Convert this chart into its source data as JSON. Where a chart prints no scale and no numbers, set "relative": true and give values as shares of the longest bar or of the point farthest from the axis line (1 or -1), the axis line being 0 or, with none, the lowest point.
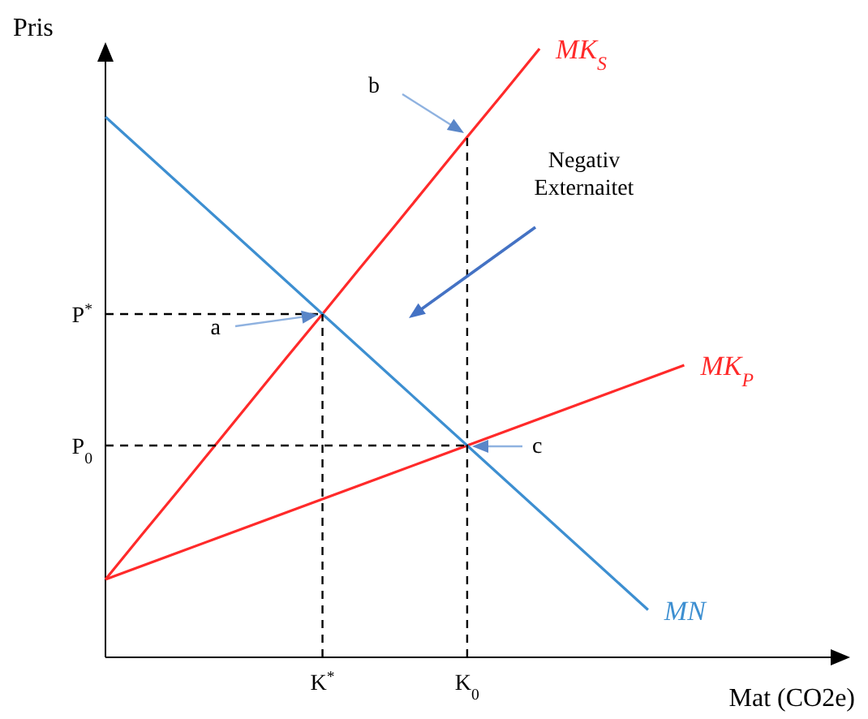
{
  "chart_data": {
    "type": "line",
    "relative": true,
    "xlabel": "Mat (CO2e)",
    "ylabel": "Pris",
    "legend": false,
    "categories": [
      null,
      null,
      null,
      null,
      null,
      null,
      "K$^{*}$",
      null,
      null,
      null,
      "K$_{0}$",
      null,
      null,
      null,
      null,
      null,
      null,
      null,
      null,
      null,
      null
    ],
    "series": [
      {
        "name": "MK$_{S}$",
        "color": "#ff2a2a",
        "values": [
          0.128,
          0.201,
          0.273,
          0.346,
          0.419,
          0.492,
          0.564,
          0.637,
          0.709,
          0.782,
          0.855,
          0.927,
          1.0,
          null,
          null,
          null,
          null,
          null,
          null,
          null,
          null
        ]
      },
      {
        "name": "MK$_{P}$",
        "color": "#ff2a2a",
        "values": [
          0.128,
          0.15,
          0.172,
          0.194,
          0.216,
          0.238,
          0.26,
          0.282,
          0.304,
          0.326,
          0.348,
          0.37,
          0.392,
          0.414,
          0.436,
          0.458,
          0.48,
          null,
          null,
          null,
          null
        ]
      },
      {
        "name": "MN",
        "color": "#3d8fd1",
        "values": [
          0.888,
          0.834,
          0.78,
          0.726,
          0.672,
          0.618,
          0.564,
          0.51,
          0.456,
          0.402,
          0.348,
          0.294,
          0.24,
          0.186,
          0.132,
          0.078,
          null,
          null,
          null,
          null,
          null
        ]
      },
      {
        "color": "#000000",
        "line_style": "dashed",
        "values": [
          0.564,
          0.564,
          0.564,
          0.564,
          0.564,
          0.564,
          0.564,
          null,
          null,
          null,
          null,
          null,
          null,
          null,
          null,
          null,
          null,
          null,
          null,
          null,
          null
        ]
      },
      {
        "color": "#000000",
        "line_style": "dashed",
        "values": [
          0.348,
          0.348,
          0.348,
          0.348,
          0.348,
          0.348,
          0.348,
          0.348,
          0.348,
          0.348,
          0.348,
          null,
          null,
          null,
          null,
          null,
          null,
          null,
          null,
          null,
          null
        ]
      }
    ],
    "annotations": [
      "P$^{*}$",
      "P$_{0}$",
      "a",
      "b",
      "c",
      "Negativ Externaitet"
    ]
  }
}
